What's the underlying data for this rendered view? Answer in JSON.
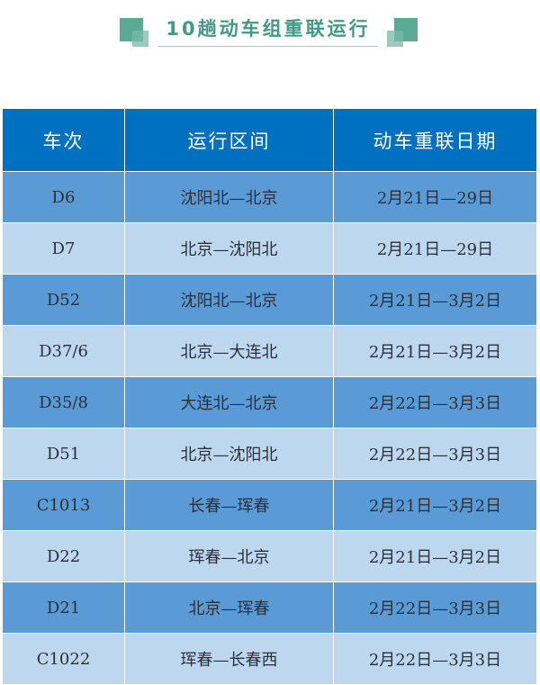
{
  "title": "10趟动车组重联运行",
  "colors": {
    "header": "#0070c0",
    "row_dark": "#5b9bd5",
    "row_light": "#bdd7ee",
    "accent": "#3f9a86"
  },
  "table": {
    "headers": [
      "车次",
      "运行区间",
      "动车重联日期"
    ],
    "rows": [
      [
        "D6",
        "沈阳北—北京",
        "2月21日—29日"
      ],
      [
        "D7",
        "北京—沈阳北",
        "2月21日—29日"
      ],
      [
        "D52",
        "沈阳北—北京",
        "2月21日—3月2日"
      ],
      [
        "D37/6",
        "北京—大连北",
        "2月21日—3月2日"
      ],
      [
        "D35/8",
        "大连北—北京",
        "2月22日—3月3日"
      ],
      [
        "D51",
        "北京—沈阳北",
        "2月22日—3月3日"
      ],
      [
        "C1013",
        "长春—珲春",
        "2月21日—3月2日"
      ],
      [
        "D22",
        "珲春—北京",
        "2月21日—3月2日"
      ],
      [
        "D21",
        "北京—珲春",
        "2月22日—3月3日"
      ],
      [
        "C1022",
        "珲春—长春西",
        "2月22日—3月3日"
      ]
    ]
  }
}
